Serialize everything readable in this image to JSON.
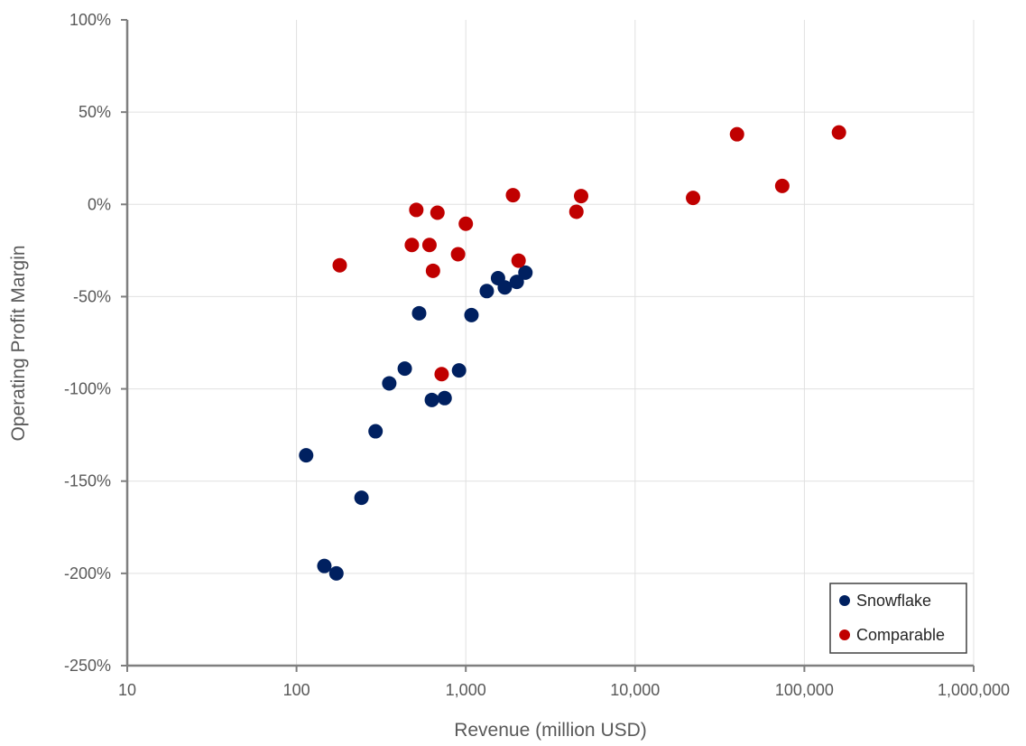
{
  "chart_data": {
    "type": "scatter",
    "title": "",
    "xlabel": "Revenue (million USD)",
    "ylabel": "Operating Profit Margin",
    "xscale": "log",
    "xlim": [
      10,
      1000000
    ],
    "ylim": [
      -2.5,
      1.0
    ],
    "x_ticks": [
      10,
      100,
      1000,
      10000,
      100000,
      1000000
    ],
    "x_tick_labels": [
      "10",
      "100",
      "1,000",
      "10,000",
      "100,000",
      "1,000,000"
    ],
    "y_ticks": [
      1.0,
      0.5,
      0.0,
      -0.5,
      -1.0,
      -1.5,
      -2.0,
      -2.5
    ],
    "y_tick_labels": [
      "100%",
      "50%",
      "0%",
      "-50%",
      "-100%",
      "-150%",
      "-200%",
      "-250%"
    ],
    "grid": "on",
    "legend": {
      "placement": "bottom-right"
    },
    "series": [
      {
        "name": "Snowflake",
        "color": "#002060",
        "points": [
          [
            114,
            -1.36
          ],
          [
            146,
            -1.96
          ],
          [
            172,
            -2.0
          ],
          [
            242,
            -1.59
          ],
          [
            293,
            -1.23
          ],
          [
            353,
            -0.97
          ],
          [
            436,
            -0.89
          ],
          [
            530,
            -0.59
          ],
          [
            630,
            -1.06
          ],
          [
            750,
            -1.05
          ],
          [
            912,
            -0.9
          ],
          [
            1080,
            -0.6
          ],
          [
            1330,
            -0.47
          ],
          [
            1550,
            -0.4
          ],
          [
            1700,
            -0.45
          ],
          [
            2000,
            -0.42
          ],
          [
            2250,
            -0.37
          ]
        ]
      },
      {
        "name": "Comparable",
        "color": "#C00000",
        "points": [
          [
            180,
            -0.33
          ],
          [
            480,
            -0.22
          ],
          [
            510,
            -0.03
          ],
          [
            610,
            -0.22
          ],
          [
            640,
            -0.36
          ],
          [
            680,
            -0.045
          ],
          [
            720,
            -0.92
          ],
          [
            900,
            -0.27
          ],
          [
            1000,
            -0.105
          ],
          [
            1900,
            0.05
          ],
          [
            2050,
            -0.305
          ],
          [
            4500,
            -0.04
          ],
          [
            4800,
            0.045
          ],
          [
            22000,
            0.035
          ],
          [
            40000,
            0.38
          ],
          [
            74000,
            0.1
          ],
          [
            160000,
            0.39
          ]
        ]
      }
    ]
  }
}
